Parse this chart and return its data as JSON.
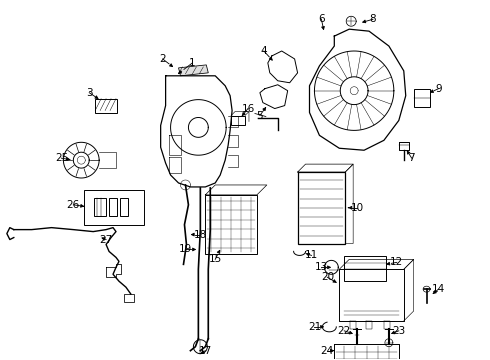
{
  "bg_color": "#ffffff",
  "fig_width": 4.9,
  "fig_height": 3.6,
  "dpi": 100,
  "label_fontsize": 7.5,
  "label_color": "#000000",
  "line_color": "#000000",
  "line_width": 0.7
}
